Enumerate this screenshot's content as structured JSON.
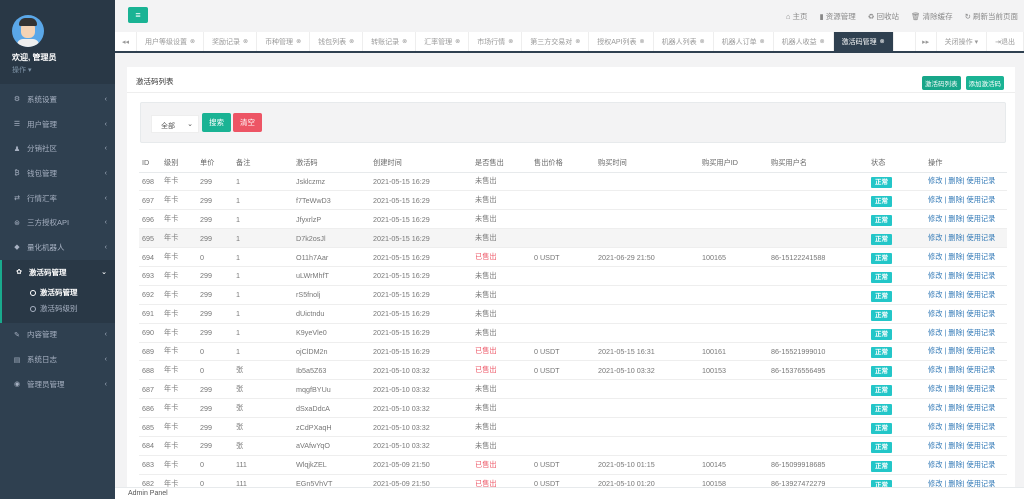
{
  "colors": {
    "sidebar": "#2f4050",
    "primary": "#1ab394",
    "danger": "#ed5565",
    "info": "#23c6c8"
  },
  "profile": {
    "name": "欢迎, 管理员",
    "op": "操作 ▾"
  },
  "sidebar": {
    "items": [
      {
        "icon": "cogs-icon",
        "glyph": "⚙",
        "label": "系统设置"
      },
      {
        "icon": "users-icon",
        "glyph": "☰",
        "label": "用户管理"
      },
      {
        "icon": "user-icon",
        "glyph": "♟",
        "label": "分销社区"
      },
      {
        "icon": "bitcoin-icon",
        "glyph": "₿",
        "label": "钱包管理"
      },
      {
        "icon": "exchange-icon",
        "glyph": "⇄",
        "label": "行情汇率"
      },
      {
        "icon": "api-icon",
        "glyph": "⊛",
        "label": "三方授权API"
      },
      {
        "icon": "robot-icon",
        "glyph": "◆",
        "label": "量化机器人"
      },
      {
        "icon": "gear-icon",
        "glyph": "✿",
        "label": "激活码管理",
        "active": true,
        "children": [
          {
            "label": "激活码管理",
            "active": true
          },
          {
            "label": "激活码级别"
          }
        ]
      },
      {
        "icon": "edit-icon",
        "glyph": "✎",
        "label": "内容管理"
      },
      {
        "icon": "log-icon",
        "glyph": "▤",
        "label": "系统日志"
      },
      {
        "icon": "admin-icon",
        "glyph": "◉",
        "label": "管理员管理"
      }
    ]
  },
  "toplinks": [
    {
      "icon": "home-icon",
      "glyph": "⌂",
      "label": "主页"
    },
    {
      "icon": "file-icon",
      "glyph": "▮",
      "label": "资源管理"
    },
    {
      "icon": "recycle-icon",
      "glyph": "♻",
      "label": "回收站"
    },
    {
      "icon": "trash-icon",
      "glyph": "🗑",
      "label": "清除缓存"
    },
    {
      "icon": "refresh-icon",
      "glyph": "↻",
      "label": "刷新当前页面"
    }
  ],
  "tabs": [
    "用户等级设置",
    "奖励记录",
    "币种管理",
    "钱包列表",
    "转账记录",
    "汇率管理",
    "市场行情",
    "第三方交易对",
    "授权API列表",
    "机器人列表",
    "机器人订单",
    "机器人收益",
    "激活码管理"
  ],
  "tab_active": 12,
  "tab_controls": {
    "close_ops": "关闭操作 ▾",
    "logout": "退出"
  },
  "panel": {
    "title": "激活码列表",
    "btn_list": "激活码列表",
    "btn_add": "添加激活码"
  },
  "search": {
    "select": "全部",
    "search": "搜索",
    "clear": "清空"
  },
  "table": {
    "headers": [
      "ID",
      "级别",
      "单价",
      "备注",
      "激活码",
      "创建时间",
      "是否售出",
      "售出价格",
      "购买时间",
      "购买用户ID",
      "购买用户名",
      "状态",
      "操作"
    ],
    "rows": [
      [
        "698",
        "年卡",
        "299",
        "1",
        "Jsklczmz",
        "2021-05-15 16:29",
        "未售出",
        "",
        "",
        "",
        "",
        "正常"
      ],
      [
        "697",
        "年卡",
        "299",
        "1",
        "f7TeWwD3",
        "2021-05-15 16:29",
        "未售出",
        "",
        "",
        "",
        "",
        "正常"
      ],
      [
        "696",
        "年卡",
        "299",
        "1",
        "JfyxrlzP",
        "2021-05-15 16:29",
        "未售出",
        "",
        "",
        "",
        "",
        "正常"
      ],
      [
        "695",
        "年卡",
        "299",
        "1",
        "D7k2osJl",
        "2021-05-15 16:29",
        "未售出",
        "",
        "",
        "",
        "",
        "正常"
      ],
      [
        "694",
        "年卡",
        "0",
        "1",
        "O11h7Aar",
        "2021-05-15 16:29",
        "已售出",
        "0 USDT",
        "2021-06-29 21:50",
        "100165",
        "86-15122241588",
        "正常"
      ],
      [
        "693",
        "年卡",
        "299",
        "1",
        "uLWrMhfT",
        "2021-05-15 16:29",
        "未售出",
        "",
        "",
        "",
        "",
        "正常"
      ],
      [
        "692",
        "年卡",
        "299",
        "1",
        "rS5fnolj",
        "2021-05-15 16:29",
        "未售出",
        "",
        "",
        "",
        "",
        "正常"
      ],
      [
        "691",
        "年卡",
        "299",
        "1",
        "dUictndu",
        "2021-05-15 16:29",
        "未售出",
        "",
        "",
        "",
        "",
        "正常"
      ],
      [
        "690",
        "年卡",
        "299",
        "1",
        "K9yeVle0",
        "2021-05-15 16:29",
        "未售出",
        "",
        "",
        "",
        "",
        "正常"
      ],
      [
        "689",
        "年卡",
        "0",
        "1",
        "ojClDM2n",
        "2021-05-15 16:29",
        "已售出",
        "0 USDT",
        "2021-05-15 16:31",
        "100161",
        "86-15521999010",
        "正常"
      ],
      [
        "688",
        "年卡",
        "0",
        "张",
        "Ib5a5Z63",
        "2021-05-10 03:32",
        "已售出",
        "0 USDT",
        "2021-05-10 03:32",
        "100153",
        "86-15376556495",
        "正常"
      ],
      [
        "687",
        "年卡",
        "299",
        "张",
        "mqgfBYUu",
        "2021-05-10 03:32",
        "未售出",
        "",
        "",
        "",
        "",
        "正常"
      ],
      [
        "686",
        "年卡",
        "299",
        "张",
        "dSxaDdcA",
        "2021-05-10 03:32",
        "未售出",
        "",
        "",
        "",
        "",
        "正常"
      ],
      [
        "685",
        "年卡",
        "299",
        "张",
        "zCdPXaqH",
        "2021-05-10 03:32",
        "未售出",
        "",
        "",
        "",
        "",
        "正常"
      ],
      [
        "684",
        "年卡",
        "299",
        "张",
        "aVAfwYqO",
        "2021-05-10 03:32",
        "未售出",
        "",
        "",
        "",
        "",
        "正常"
      ],
      [
        "683",
        "年卡",
        "0",
        "111",
        "WlqjkZEL",
        "2021-05-09 21:50",
        "已售出",
        "0 USDT",
        "2021-05-10 01:15",
        "100145",
        "86-15099918685",
        "正常"
      ],
      [
        "682",
        "年卡",
        "0",
        "111",
        "EGn5VhVT",
        "2021-05-09 21:50",
        "已售出",
        "0 USDT",
        "2021-05-10 01:20",
        "100158",
        "86-13927472279",
        "正常"
      ]
    ],
    "ops": {
      "edit": "修改",
      "del": "删除",
      "log": "使用记录"
    }
  },
  "footer": "Admin Panel"
}
